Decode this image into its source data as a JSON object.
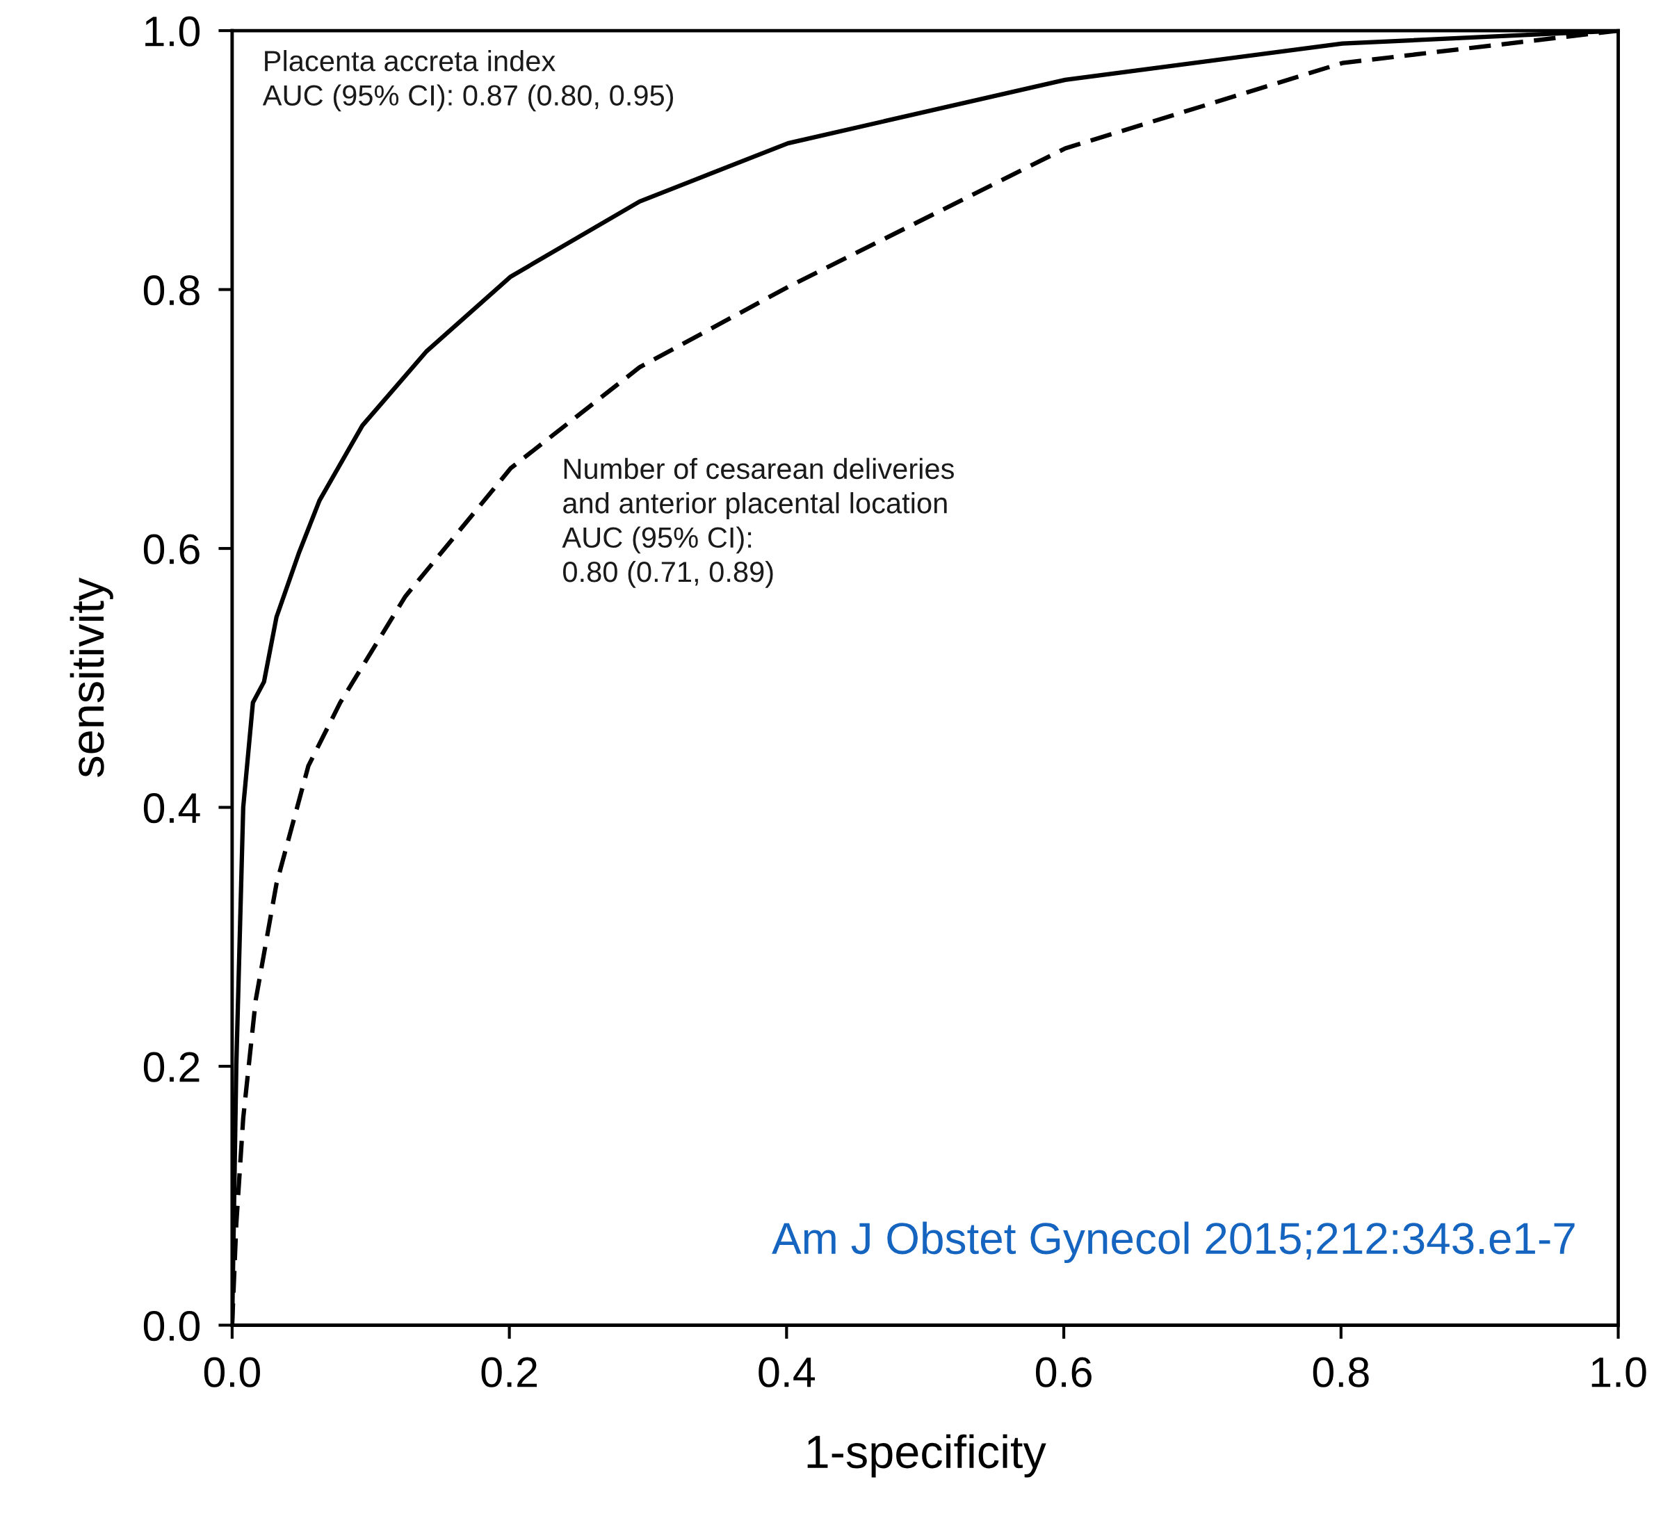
{
  "chart_data": {
    "type": "line",
    "xlabel": "1-specificity",
    "ylabel": "sensitivity",
    "xlim": [
      0,
      1
    ],
    "ylim": [
      0,
      1
    ],
    "xticks": [
      {
        "value": 0,
        "label": "0.0"
      },
      {
        "value": 0.2,
        "label": "0.2"
      },
      {
        "value": 0.4,
        "label": "0.4"
      },
      {
        "value": 0.6,
        "label": "0.6"
      },
      {
        "value": 0.8,
        "label": "0.8"
      },
      {
        "value": 1,
        "label": "1.0"
      }
    ],
    "yticks": [
      {
        "value": 0,
        "label": "0.0"
      },
      {
        "value": 0.2,
        "label": "0.2"
      },
      {
        "value": 0.4,
        "label": "0.4"
      },
      {
        "value": 0.6,
        "label": "0.6"
      },
      {
        "value": 0.8,
        "label": "0.8"
      },
      {
        "value": 1,
        "label": "1.0"
      }
    ],
    "grid": false,
    "legend": false,
    "marker": "none",
    "series": [
      {
        "color": "#000000",
        "line_style": "solid",
        "x": [
          0,
          0.003,
          0.008,
          0.015,
          0.023,
          0.032,
          0.048,
          0.063,
          0.094,
          0.14,
          0.201,
          0.294,
          0.401,
          0.601,
          0.801,
          1
        ],
        "values": [
          0,
          0.2,
          0.4,
          0.481,
          0.497,
          0.547,
          0.596,
          0.637,
          0.695,
          0.752,
          0.81,
          0.868,
          0.913,
          0.962,
          0.99,
          1
        ]
      },
      {
        "color": "#000000",
        "line_style": "dashed",
        "x": [
          0,
          0.003,
          0.008,
          0.017,
          0.032,
          0.055,
          0.078,
          0.125,
          0.201,
          0.294,
          0.401,
          0.601,
          0.801,
          1
        ],
        "values": [
          0,
          0.078,
          0.16,
          0.251,
          0.341,
          0.432,
          0.481,
          0.563,
          0.662,
          0.74,
          0.802,
          0.909,
          0.975,
          1
        ]
      }
    ],
    "annotations": [
      "Placenta accreta index\nAUC (95% CI): 0.87 (0.80, 0.95)",
      "Number of cesarean deliveries\nand anterior placental location\nAUC (95% CI):\n0.80 (0.71, 0.89)",
      "Am J Obstet Gynecol 2015;212:343.e1-7"
    ]
  }
}
